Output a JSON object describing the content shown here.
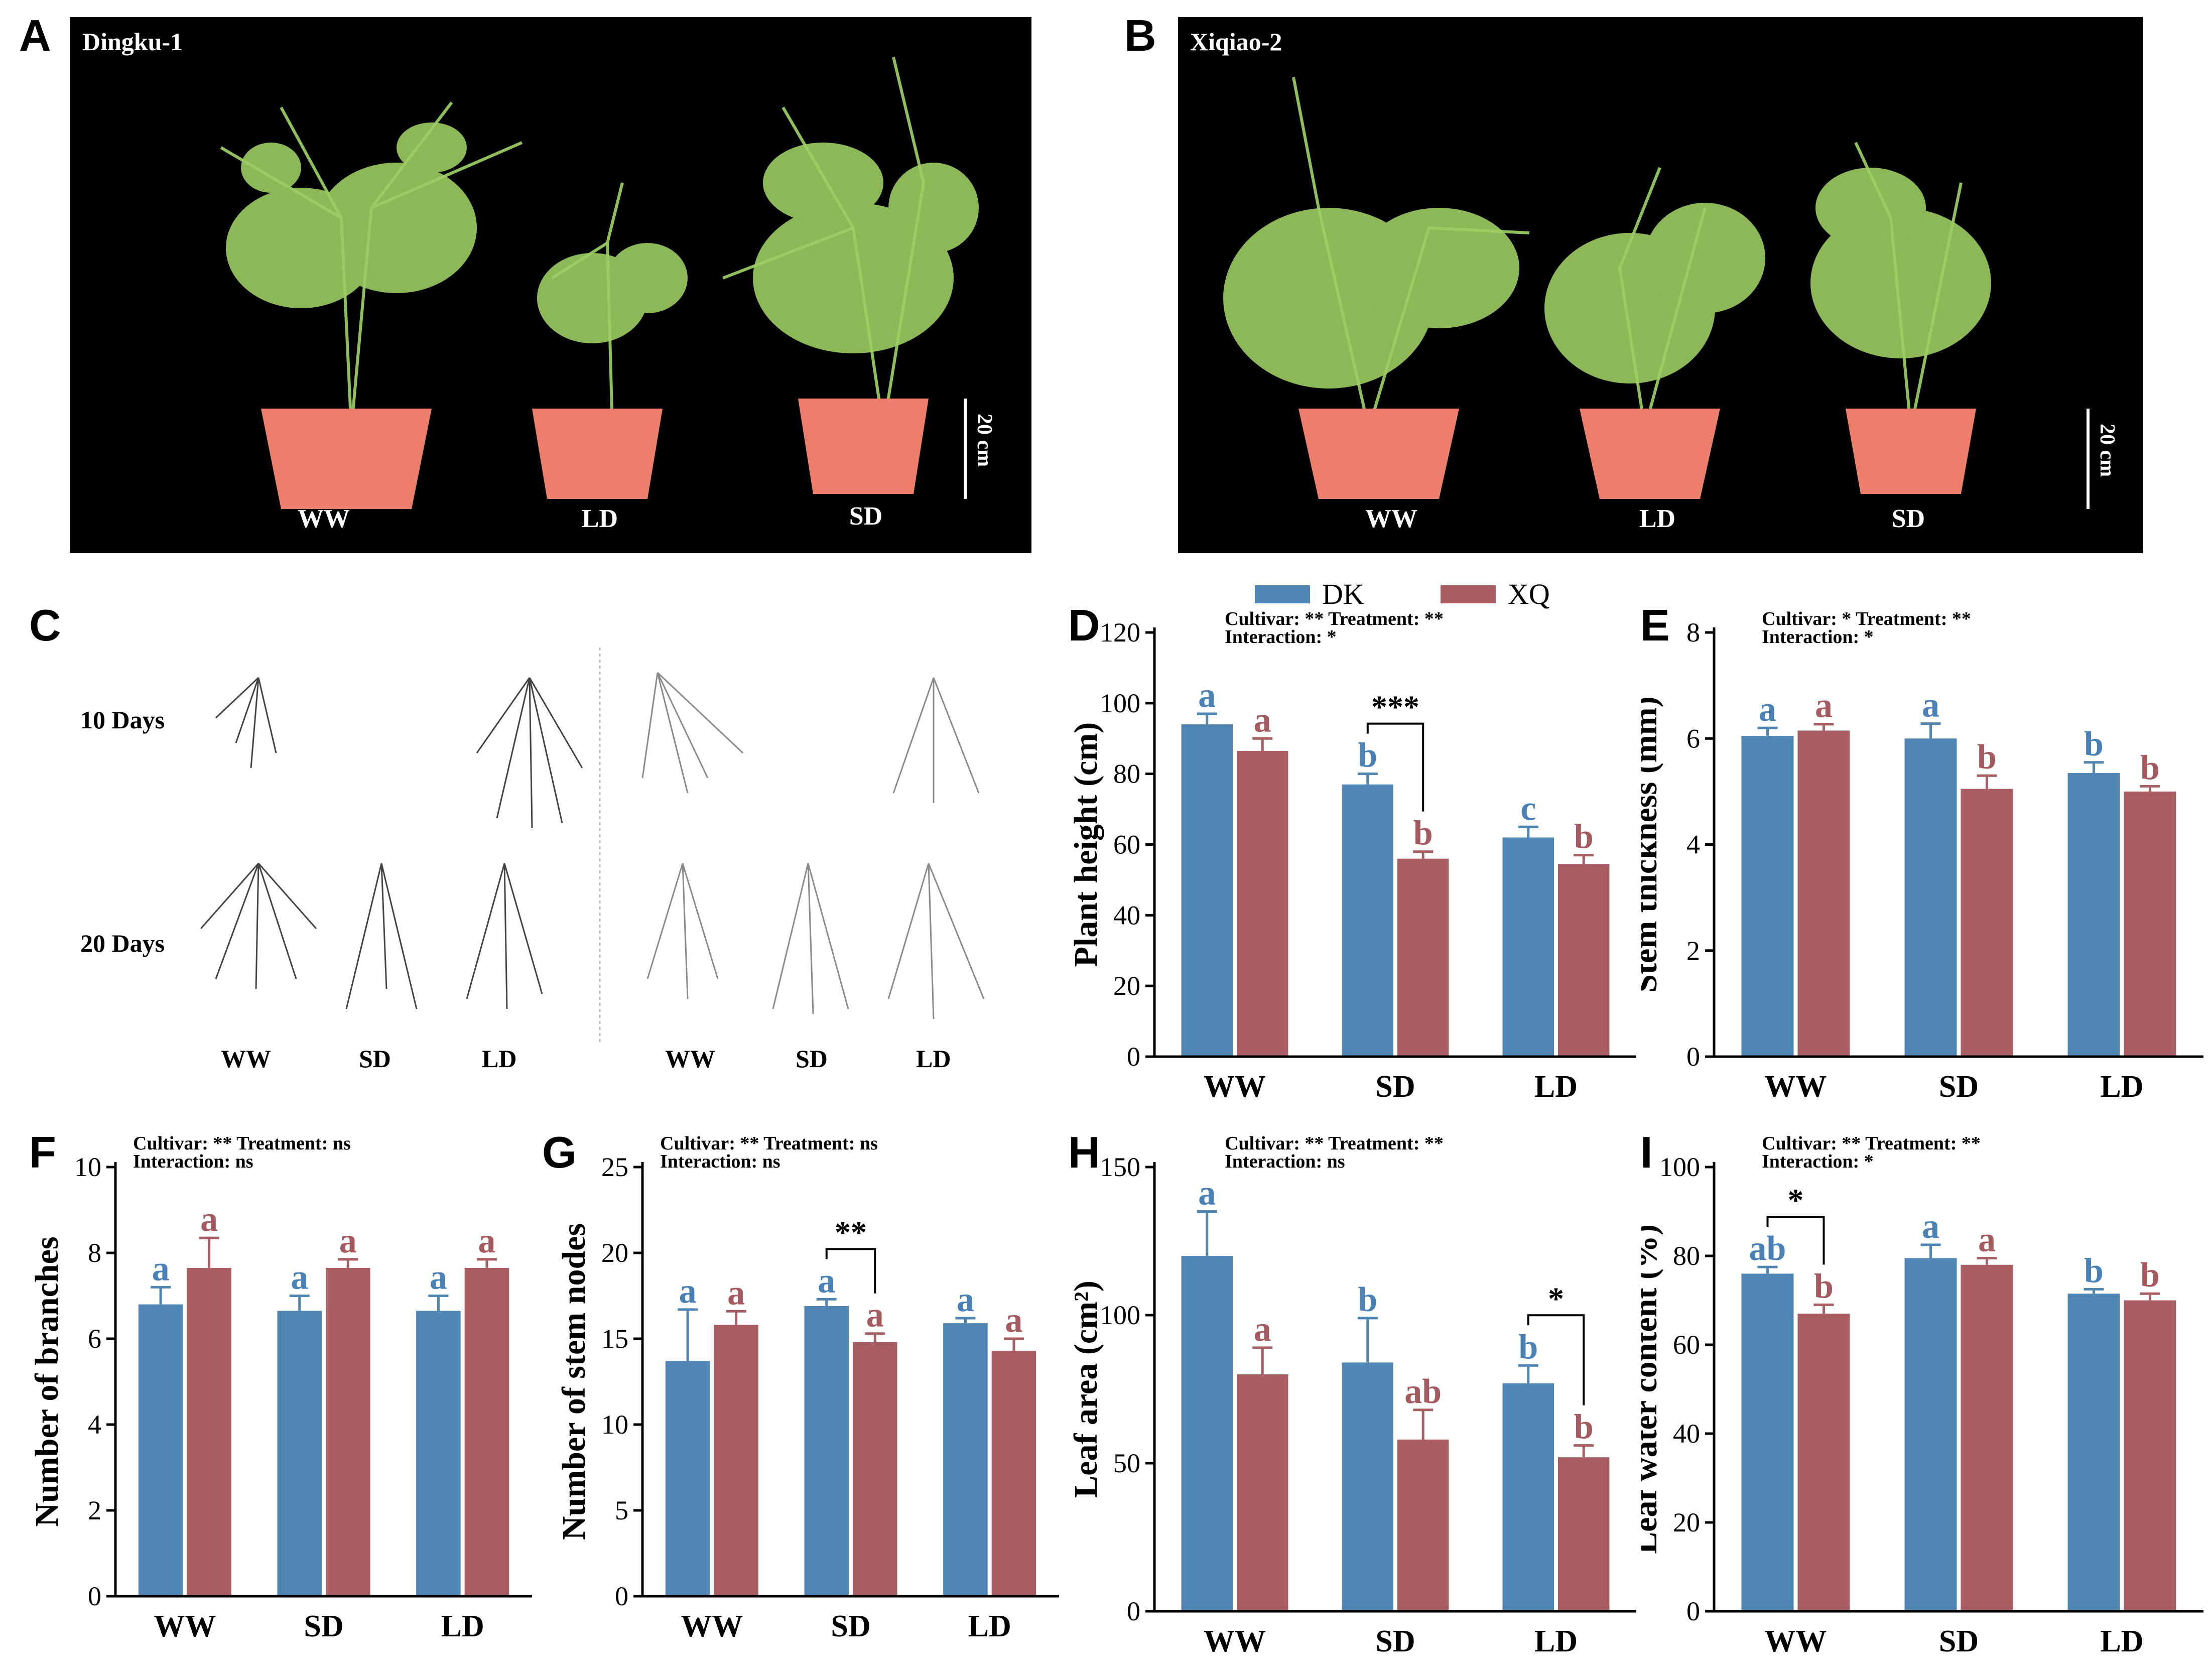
{
  "figure": {
    "panel_letters": [
      "A",
      "B",
      "C",
      "D",
      "E",
      "F",
      "G",
      "H",
      "I"
    ],
    "colors": {
      "DK": "#4f86b3",
      "XQ": "#a85e63",
      "DK_letter": "#4a82b8",
      "XQ_letter": "#a55a5f"
    }
  },
  "photos": {
    "A": {
      "title": "Dingku-1",
      "labels": [
        "WW",
        "LD",
        "SD"
      ],
      "scale": "20 cm"
    },
    "B": {
      "title": "Xiqiao-2",
      "labels": [
        "WW",
        "LD",
        "SD"
      ],
      "scale": "20 cm"
    }
  },
  "roots": {
    "rows": [
      "10 Days",
      "20 Days"
    ],
    "cols_left": [
      "WW",
      "SD",
      "LD"
    ],
    "cols_right": [
      "WW",
      "SD",
      "LD"
    ]
  },
  "legend": {
    "items": [
      {
        "name": "DK",
        "color": "#4f86b3"
      },
      {
        "name": "XQ",
        "color": "#a85e63"
      }
    ]
  },
  "chart_data": [
    {
      "id": "D",
      "type": "bar",
      "categories": [
        "WW",
        "SD",
        "LD"
      ],
      "ylabel": "Plant height (cm)",
      "ylim": [
        0,
        120
      ],
      "yticks": [
        0,
        20,
        40,
        60,
        80,
        100,
        120
      ],
      "stats": [
        "Cultivar: **  Treatment: **",
        "Interaction: *"
      ],
      "series": [
        {
          "name": "DK",
          "values": [
            94,
            77,
            62
          ],
          "errors": [
            3,
            3,
            3
          ],
          "letters": [
            "a",
            "b",
            "c"
          ]
        },
        {
          "name": "XQ",
          "values": [
            86.5,
            56,
            54.5
          ],
          "errors": [
            3.5,
            2,
            2.5
          ],
          "letters": [
            "a",
            "b",
            "b"
          ]
        }
      ],
      "brackets": [
        {
          "category": 1,
          "label": "***"
        }
      ]
    },
    {
      "id": "E",
      "type": "bar",
      "categories": [
        "WW",
        "SD",
        "LD"
      ],
      "ylabel": "Stem thickness (mm)",
      "ylim": [
        0,
        8
      ],
      "yticks": [
        0,
        2,
        4,
        6,
        8
      ],
      "stats": [
        "Cultivar: *  Treatment: **",
        "Interaction: *"
      ],
      "series": [
        {
          "name": "DK",
          "values": [
            6.05,
            6.0,
            5.35
          ],
          "errors": [
            0.15,
            0.28,
            0.2
          ],
          "letters": [
            "a",
            "a",
            "b"
          ]
        },
        {
          "name": "XQ",
          "values": [
            6.15,
            5.05,
            5.0
          ],
          "errors": [
            0.12,
            0.25,
            0.1
          ],
          "letters": [
            "a",
            "b",
            "b"
          ]
        }
      ],
      "brackets": []
    },
    {
      "id": "F",
      "type": "bar",
      "categories": [
        "WW",
        "SD",
        "LD"
      ],
      "ylabel": "Number of branches",
      "ylim": [
        0,
        10
      ],
      "yticks": [
        0,
        2,
        4,
        6,
        8,
        10
      ],
      "stats": [
        "Cultivar: **  Treatment: ns",
        "Interaction: ns"
      ],
      "series": [
        {
          "name": "DK",
          "values": [
            6.8,
            6.65,
            6.65
          ],
          "errors": [
            0.4,
            0.35,
            0.35
          ],
          "letters": [
            "a",
            "a",
            "a"
          ]
        },
        {
          "name": "XQ",
          "values": [
            7.65,
            7.65,
            7.65
          ],
          "errors": [
            0.7,
            0.2,
            0.2
          ],
          "letters": [
            "a",
            "a",
            "a"
          ]
        }
      ],
      "brackets": []
    },
    {
      "id": "G",
      "type": "bar",
      "categories": [
        "WW",
        "SD",
        "LD"
      ],
      "ylabel": "Number of stem nodes",
      "ylim": [
        0,
        25
      ],
      "yticks": [
        0,
        5,
        10,
        15,
        20,
        25
      ],
      "stats": [
        "Cultivar: **  Treatment: ns",
        "Interaction: ns"
      ],
      "series": [
        {
          "name": "DK",
          "values": [
            13.7,
            16.9,
            15.9
          ],
          "errors": [
            3.0,
            0.4,
            0.3
          ],
          "letters": [
            "a",
            "a",
            "a"
          ]
        },
        {
          "name": "XQ",
          "values": [
            15.8,
            14.8,
            14.3
          ],
          "errors": [
            0.8,
            0.5,
            0.7
          ],
          "letters": [
            "a",
            "a",
            "a"
          ]
        }
      ],
      "brackets": [
        {
          "category": 1,
          "label": "**"
        }
      ]
    },
    {
      "id": "H",
      "type": "bar",
      "categories": [
        "WW",
        "SD",
        "LD"
      ],
      "ylabel": "Leaf area (cm²)",
      "ylim": [
        0,
        150
      ],
      "yticks": [
        0,
        50,
        100,
        150
      ],
      "stats": [
        "Cultivar: **  Treatment: **",
        "Interaction: ns"
      ],
      "series": [
        {
          "name": "DK",
          "values": [
            120,
            84,
            77
          ],
          "errors": [
            15,
            15,
            6
          ],
          "letters": [
            "a",
            "b",
            "b"
          ]
        },
        {
          "name": "XQ",
          "values": [
            80,
            58,
            52
          ],
          "errors": [
            9,
            10,
            4
          ],
          "letters": [
            "a",
            "ab",
            "b"
          ]
        }
      ],
      "brackets": [
        {
          "category": 2,
          "label": "*"
        }
      ]
    },
    {
      "id": "I",
      "type": "bar",
      "categories": [
        "WW",
        "SD",
        "LD"
      ],
      "ylabel": "Leaf water content (%)",
      "ylim": [
        0,
        100
      ],
      "yticks": [
        0,
        20,
        40,
        60,
        80,
        100
      ],
      "stats": [
        "Cultivar: **  Treatment: **",
        "Interaction: *"
      ],
      "series": [
        {
          "name": "DK",
          "values": [
            76,
            79.5,
            71.5
          ],
          "errors": [
            1.5,
            3,
            1
          ],
          "letters": [
            "ab",
            "a",
            "b"
          ]
        },
        {
          "name": "XQ",
          "values": [
            67,
            78,
            70
          ],
          "errors": [
            2,
            1.5,
            1.5
          ],
          "letters": [
            "b",
            "a",
            "b"
          ]
        }
      ],
      "brackets": [
        {
          "category": 0,
          "label": "*"
        }
      ]
    }
  ]
}
